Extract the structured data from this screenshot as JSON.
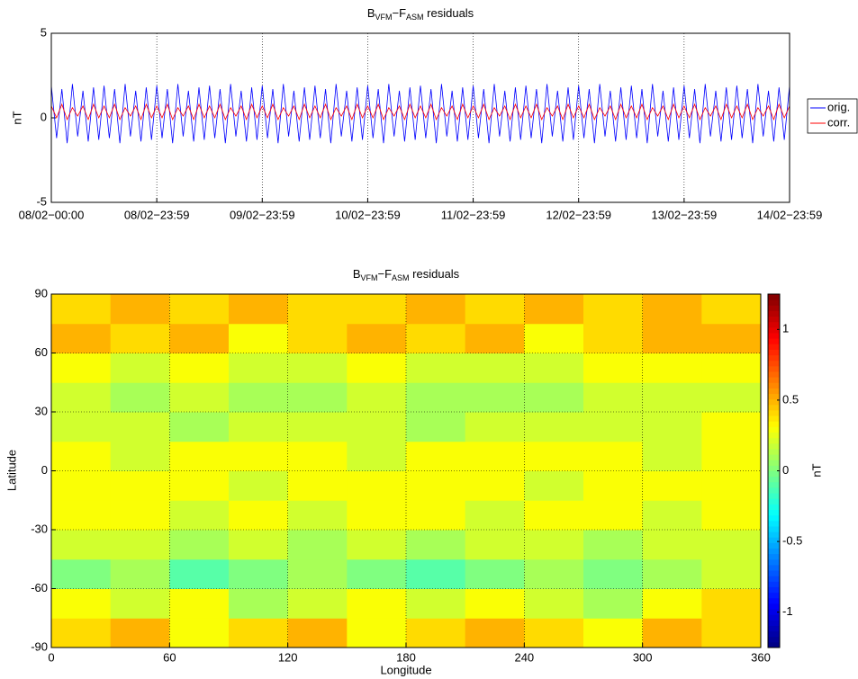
{
  "chart_data": [
    {
      "type": "line",
      "title": [
        "B",
        "VFM",
        "−F",
        "ASM",
        " residuals"
      ],
      "ylabel": "nT",
      "xlim": [
        0,
        7
      ],
      "xticks": [
        {
          "value": 0,
          "label": "08/02−00:00"
        },
        {
          "value": 1,
          "label": "08/02−23:59"
        },
        {
          "value": 2,
          "label": "09/02−23:59"
        },
        {
          "value": 3,
          "label": "10/02−23:59"
        },
        {
          "value": 4,
          "label": "11/02−23:59"
        },
        {
          "value": 5,
          "label": "12/02−23:59"
        },
        {
          "value": 6,
          "label": "13/02−23:59"
        },
        {
          "value": 7,
          "label": "14/02−23:59"
        }
      ],
      "ylim": [
        -5,
        5
      ],
      "yticks": [
        -5,
        0,
        5
      ],
      "grid": "x",
      "legend": "outside-right",
      "x": [
        0,
        0.05,
        0.1,
        0.15,
        0.2,
        0.25,
        0.3,
        0.35,
        0.4,
        0.45,
        0.5,
        0.55,
        0.6,
        0.65,
        0.7,
        0.75,
        0.8,
        0.85,
        0.9,
        0.95,
        1,
        1.05,
        1.1,
        1.15,
        1.2,
        1.25,
        1.3,
        1.35,
        1.4,
        1.45,
        1.5,
        1.55,
        1.6,
        1.65,
        1.7,
        1.75,
        1.8,
        1.85,
        1.9,
        1.95,
        2,
        2.05,
        2.1,
        2.15,
        2.2,
        2.25,
        2.3,
        2.35,
        2.4,
        2.45,
        2.5,
        2.55,
        2.6,
        2.65,
        2.7,
        2.75,
        2.8,
        2.85,
        2.9,
        2.95,
        3,
        3.05,
        3.1,
        3.15,
        3.2,
        3.25,
        3.3,
        3.35,
        3.4,
        3.45,
        3.5,
        3.55,
        3.6,
        3.65,
        3.7,
        3.75,
        3.8,
        3.85,
        3.9,
        3.95,
        4,
        4.05,
        4.1,
        4.15,
        4.2,
        4.25,
        4.3,
        4.35,
        4.4,
        4.45,
        4.5,
        4.55,
        4.6,
        4.65,
        4.7,
        4.75,
        4.8,
        4.85,
        4.9,
        4.95,
        5,
        5.05,
        5.1,
        5.15,
        5.2,
        5.25,
        5.3,
        5.35,
        5.4,
        5.45,
        5.5,
        5.55,
        5.6,
        5.65,
        5.7,
        5.75,
        5.8,
        5.85,
        5.9,
        5.95,
        6,
        6.05,
        6.1,
        6.15,
        6.2,
        6.25,
        6.3,
        6.35,
        6.4,
        6.45,
        6.5,
        6.55,
        6.6,
        6.65,
        6.7,
        6.75,
        6.8,
        6.85,
        6.9,
        6.95,
        7
      ],
      "series": [
        {
          "name": "orig.",
          "color": "#0000ff",
          "values": [
            1.9,
            -1.2,
            1.7,
            -1.5,
            2.0,
            -1.1,
            1.6,
            -1.4,
            1.8,
            -1.3,
            1.9,
            -1.2,
            1.7,
            -1.5,
            2.0,
            -1.1,
            1.6,
            -1.4,
            1.8,
            -1.3,
            1.9,
            -1.2,
            1.7,
            -1.5,
            2.0,
            -1.1,
            1.6,
            -1.4,
            1.8,
            -1.3,
            1.9,
            -1.2,
            1.7,
            -1.5,
            2.0,
            -1.1,
            1.6,
            -1.4,
            1.8,
            -1.3,
            1.9,
            -1.2,
            1.7,
            -1.5,
            2.0,
            -1.1,
            1.6,
            -1.4,
            1.8,
            -1.3,
            1.9,
            -1.2,
            1.7,
            -1.5,
            2.0,
            -1.1,
            1.6,
            -1.4,
            1.8,
            -1.3,
            1.9,
            -1.2,
            1.7,
            -1.5,
            2.0,
            -1.1,
            1.6,
            -1.4,
            1.8,
            -1.3,
            1.9,
            -1.2,
            1.7,
            -1.5,
            2.0,
            -1.1,
            1.6,
            -1.4,
            1.8,
            -1.3,
            1.9,
            -1.2,
            1.7,
            -1.5,
            2.0,
            -1.1,
            1.6,
            -1.4,
            1.8,
            -1.3,
            1.9,
            -1.2,
            1.7,
            -1.5,
            2.0,
            -1.1,
            1.6,
            -1.4,
            1.8,
            -1.3,
            1.9,
            -1.2,
            1.7,
            -1.5,
            2.0,
            -1.1,
            1.6,
            -1.4,
            1.8,
            -1.3,
            1.9,
            -1.2,
            1.7,
            -1.5,
            2.0,
            -1.1,
            1.6,
            -1.4,
            1.8,
            -1.3,
            1.9,
            -1.2,
            1.7,
            -1.5,
            2.0,
            -1.1,
            1.6,
            -1.4,
            1.8,
            -1.3,
            1.9,
            -1.2,
            1.7,
            -1.5,
            2.0,
            -1.1,
            1.6,
            -1.4,
            1.8,
            -1.3,
            1.9
          ]
        },
        {
          "name": "corr.",
          "color": "#ff0000",
          "values": [
            0.7,
            0.0,
            0.8,
            -0.1,
            0.6,
            0.1,
            0.7,
            -0.1,
            0.8,
            0.0,
            0.7,
            0.0,
            0.8,
            -0.1,
            0.6,
            0.1,
            0.7,
            -0.1,
            0.8,
            0.0,
            0.7,
            0.0,
            0.8,
            -0.1,
            0.6,
            0.1,
            0.7,
            -0.1,
            0.8,
            0.0,
            0.7,
            0.0,
            0.8,
            -0.1,
            0.6,
            0.1,
            0.7,
            -0.1,
            0.8,
            0.0,
            0.7,
            0.0,
            0.8,
            -0.1,
            0.6,
            0.1,
            0.7,
            -0.1,
            0.8,
            0.0,
            0.7,
            0.0,
            0.8,
            -0.1,
            0.6,
            0.1,
            0.7,
            -0.1,
            0.8,
            0.0,
            0.7,
            0.0,
            0.8,
            -0.1,
            0.6,
            0.1,
            0.7,
            -0.1,
            0.8,
            0.0,
            0.7,
            0.0,
            0.8,
            -0.1,
            0.6,
            0.1,
            0.7,
            -0.1,
            0.8,
            0.0,
            0.7,
            0.0,
            0.8,
            -0.1,
            0.6,
            0.1,
            0.7,
            -0.1,
            0.8,
            0.0,
            0.7,
            0.0,
            0.8,
            -0.1,
            0.6,
            0.1,
            0.7,
            -0.1,
            0.8,
            0.0,
            0.7,
            0.0,
            0.8,
            -0.1,
            0.6,
            0.1,
            0.7,
            -0.1,
            0.8,
            0.0,
            0.7,
            0.0,
            0.8,
            -0.1,
            0.6,
            0.1,
            0.7,
            -0.1,
            0.8,
            0.0,
            0.7,
            0.0,
            0.8,
            -0.1,
            0.6,
            0.1,
            0.7,
            -0.1,
            0.8,
            0.0,
            0.7,
            0.0,
            0.8,
            -0.1,
            0.6,
            0.1,
            0.7,
            -0.1,
            0.8,
            0.0,
            0.7
          ]
        }
      ]
    },
    {
      "type": "heatmap",
      "title": [
        "B",
        "VFM",
        "−F",
        "ASM",
        " residuals"
      ],
      "xlabel": "Longitude",
      "ylabel": "Latitude",
      "colorbar_label": "nT",
      "colormap": "jet",
      "grid": true,
      "xlim": [
        0,
        360
      ],
      "xticks": [
        0,
        60,
        120,
        180,
        240,
        300,
        360
      ],
      "ylim": [
        -90,
        90
      ],
      "yticks": [
        -90,
        -60,
        -30,
        0,
        30,
        60,
        90
      ],
      "clim": [
        -1.25,
        1.25
      ],
      "cticks": [
        -1,
        -0.5,
        0,
        0.5,
        1
      ],
      "xbins": [
        0,
        30,
        60,
        90,
        120,
        150,
        180,
        210,
        240,
        270,
        300,
        330,
        360
      ],
      "ybins": [
        -90,
        -75,
        -60,
        -45,
        -30,
        -15,
        0,
        15,
        30,
        45,
        60,
        75,
        90
      ],
      "values": [
        [
          0.4,
          0.5,
          0.3,
          0.4,
          0.5,
          0.3,
          0.4,
          0.5,
          0.4,
          0.3,
          0.5,
          0.4
        ],
        [
          0.3,
          0.2,
          0.3,
          0.1,
          0.2,
          0.3,
          0.2,
          0.3,
          0.2,
          0.1,
          0.3,
          0.4
        ],
        [
          0.0,
          0.1,
          -0.1,
          0.0,
          0.1,
          0.0,
          -0.1,
          0.0,
          0.1,
          0.0,
          0.1,
          0.2
        ],
        [
          0.2,
          0.2,
          0.1,
          0.2,
          0.1,
          0.2,
          0.1,
          0.2,
          0.2,
          0.1,
          0.2,
          0.2
        ],
        [
          0.3,
          0.3,
          0.2,
          0.3,
          0.2,
          0.3,
          0.3,
          0.2,
          0.3,
          0.3,
          0.2,
          0.3
        ],
        [
          0.3,
          0.3,
          0.3,
          0.2,
          0.3,
          0.3,
          0.3,
          0.3,
          0.2,
          0.3,
          0.3,
          0.3
        ],
        [
          0.3,
          0.2,
          0.3,
          0.3,
          0.3,
          0.2,
          0.3,
          0.3,
          0.3,
          0.3,
          0.2,
          0.3
        ],
        [
          0.2,
          0.2,
          0.1,
          0.2,
          0.2,
          0.2,
          0.1,
          0.2,
          0.2,
          0.2,
          0.2,
          0.3
        ],
        [
          0.2,
          0.1,
          0.2,
          0.1,
          0.1,
          0.2,
          0.1,
          0.1,
          0.1,
          0.2,
          0.2,
          0.2
        ],
        [
          0.3,
          0.2,
          0.3,
          0.2,
          0.2,
          0.3,
          0.2,
          0.2,
          0.2,
          0.3,
          0.3,
          0.3
        ],
        [
          0.5,
          0.4,
          0.5,
          0.3,
          0.4,
          0.5,
          0.4,
          0.5,
          0.3,
          0.4,
          0.5,
          0.5
        ],
        [
          0.4,
          0.5,
          0.4,
          0.5,
          0.4,
          0.4,
          0.5,
          0.4,
          0.5,
          0.4,
          0.5,
          0.4
        ]
      ]
    }
  ]
}
